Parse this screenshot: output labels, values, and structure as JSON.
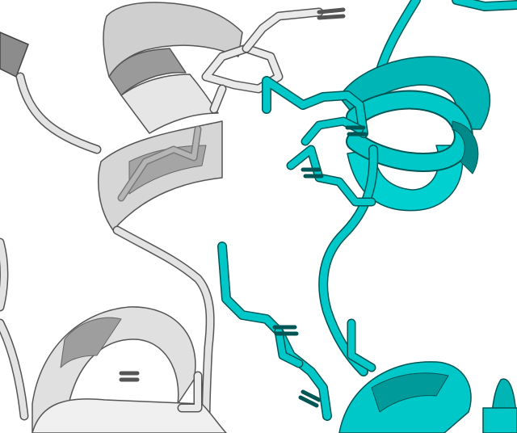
{
  "scene": {
    "background": "#ffffff",
    "chains": [
      {
        "id": "chain-a",
        "color": "#d9d9d9",
        "shade": "#8c8c8c",
        "highlight": "#f4f4f4"
      },
      {
        "id": "chain-b",
        "color": "#00c8c8",
        "shade": "#008a8a",
        "highlight": "#7ff0f0"
      }
    ]
  }
}
